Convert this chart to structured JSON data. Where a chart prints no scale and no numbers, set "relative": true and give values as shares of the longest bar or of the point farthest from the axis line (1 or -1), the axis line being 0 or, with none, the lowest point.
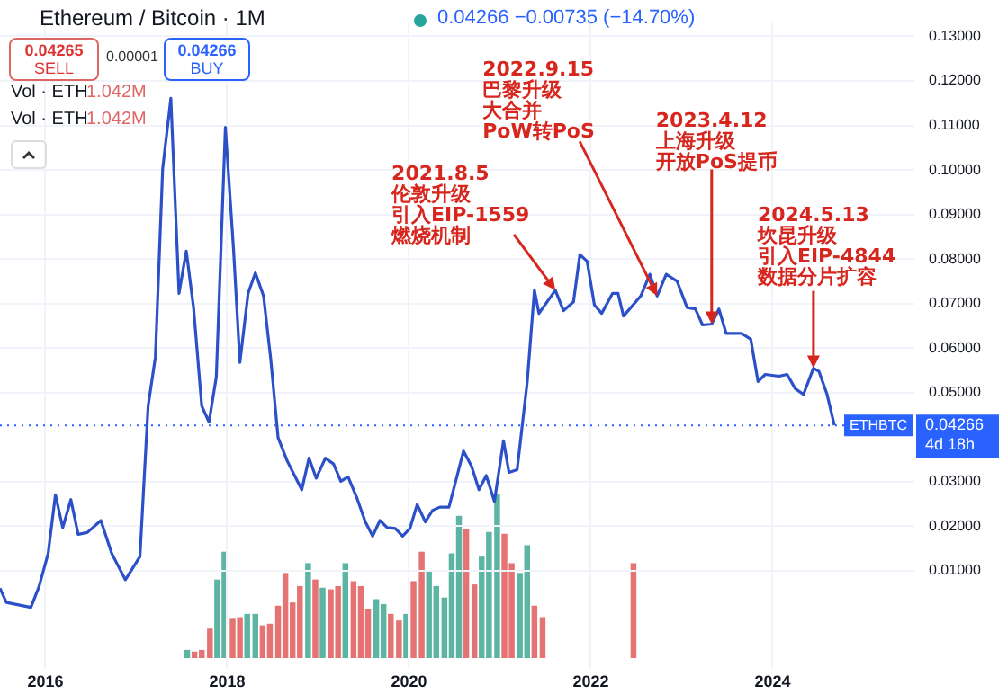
{
  "chart_data": [
    {
      "type": "line",
      "title": "Ethereum / Bitcoin · 1M",
      "subtitle": "0.04266 −0.00735 (−14.70%)",
      "x": [
        2015.5,
        2015.57,
        2015.84,
        2015.93,
        2016.03,
        2016.11,
        2016.19,
        2016.28,
        2016.36,
        2016.46,
        2016.61,
        2016.73,
        2016.88,
        2017.04,
        2017.13,
        2017.21,
        2017.29,
        2017.38,
        2017.47,
        2017.55,
        2017.63,
        2017.72,
        2017.8,
        2017.88,
        2017.98,
        2018.07,
        2018.14,
        2018.23,
        2018.31,
        2018.4,
        2018.48,
        2018.56,
        2018.66,
        2018.82,
        2018.9,
        2018.98,
        2019.08,
        2019.17,
        2019.25,
        2019.33,
        2019.43,
        2019.52,
        2019.6,
        2019.68,
        2019.76,
        2019.85,
        2019.93,
        2020.01,
        2020.09,
        2020.18,
        2020.26,
        2020.34,
        2020.44,
        2020.6,
        2020.69,
        2020.77,
        2020.85,
        2020.94,
        2021.04,
        2021.1,
        2021.19,
        2021.3,
        2021.38,
        2021.43,
        2021.61,
        2021.7,
        2021.81,
        2021.88,
        2021.96,
        2022.04,
        2022.12,
        2022.24,
        2022.3,
        2022.36,
        2022.55,
        2022.65,
        2022.73,
        2022.83,
        2022.95,
        2023.06,
        2023.15,
        2023.23,
        2023.33,
        2023.41,
        2023.49,
        2023.66,
        2023.76,
        2023.84,
        2023.92,
        2024.07,
        2024.16,
        2024.25,
        2024.34,
        2024.45,
        2024.51,
        2024.6,
        2024.68
      ],
      "series": [
        {
          "color": "#2b50c8",
          "values": [
            0.0061,
            0.0029,
            0.0018,
            0.0065,
            0.0139,
            0.0271,
            0.0197,
            0.026,
            0.0182,
            0.0186,
            0.0213,
            0.0139,
            0.008,
            0.0132,
            0.047,
            0.058,
            0.1003,
            0.1161,
            0.0723,
            0.0818,
            0.0691,
            0.047,
            0.0434,
            0.0535,
            0.1096,
            0.0821,
            0.0568,
            0.0723,
            0.0769,
            0.0717,
            0.0574,
            0.0399,
            0.0347,
            0.0282,
            0.0353,
            0.0308,
            0.0353,
            0.034,
            0.0301,
            0.0311,
            0.0262,
            0.021,
            0.0178,
            0.0213,
            0.0197,
            0.0195,
            0.0178,
            0.0195,
            0.0249,
            0.021,
            0.0236,
            0.0243,
            0.0243,
            0.0369,
            0.0334,
            0.0282,
            0.0314,
            0.0256,
            0.0392,
            0.0321,
            0.0327,
            0.0522,
            0.073,
            0.0678,
            0.073,
            0.0684,
            0.0704,
            0.081,
            0.0795,
            0.0697,
            0.0678,
            0.0723,
            0.0723,
            0.0672,
            0.0717,
            0.0766,
            0.0717,
            0.0766,
            0.075,
            0.0691,
            0.0688,
            0.0652,
            0.0654,
            0.0688,
            0.0633,
            0.0633,
            0.062,
            0.0525,
            0.0541,
            0.0537,
            0.0541,
            0.0509,
            0.0496,
            0.0555,
            0.0548,
            0.0496,
            0.04266
          ]
        }
      ],
      "xlim": [
        2015.5,
        2025.56
      ],
      "xticks": [
        2016,
        2018,
        2020,
        2022,
        2024
      ],
      "ylim": [
        -0.012,
        0.133
      ],
      "yticks": [
        {
          "value": 0.01,
          "label": "0.01000"
        },
        {
          "value": 0.02,
          "label": "0.02000"
        },
        {
          "value": 0.03,
          "label": "0.03000"
        },
        {
          "value": 0.05,
          "label": "0.05000"
        },
        {
          "value": 0.06,
          "label": "0.06000"
        },
        {
          "value": 0.07,
          "label": "0.07000"
        },
        {
          "value": 0.08,
          "label": "0.08000"
        },
        {
          "value": 0.09,
          "label": "0.09000"
        },
        {
          "value": 0.1,
          "label": "0.10000"
        },
        {
          "value": 0.11,
          "label": "0.11000"
        },
        {
          "value": 0.12,
          "label": "0.12000"
        },
        {
          "value": 0.13,
          "label": "0.13000"
        }
      ],
      "grid": true,
      "marker": "none",
      "line_style": "solid",
      "ref_lines": [
        {
          "axis": "y",
          "value": 0.04266,
          "label": "ETHBTC",
          "color": "#2962ff",
          "line_style": "dotted"
        }
      ],
      "annotations": [
        "0.04265",
        "SELL",
        "0.00001",
        "0.04266",
        "BUY",
        "Vol · ETH",
        "1.042M",
        "Vol · ETH",
        "1.042M",
        "4d 18h",
        {
          "text": "2021.8.5伦敦升级引入EIP-1559燃烧机制",
          "x": 2021.61,
          "y": 0.073
        },
        {
          "text": "2022.9.15巴黎升级大合并PoW转PoS",
          "x": 2022.73,
          "y": 0.0717
        },
        {
          "text": "2023.4.12上海升级开放PoS提币",
          "x": 2023.33,
          "y": 0.0654
        },
        {
          "text": "2024.5.13坎昆升级引入EIP-4844数据分片扩容",
          "x": 2024.45,
          "y": 0.0555
        }
      ]
    },
    {
      "type": "bar",
      "relative": true,
      "tick_labels": false,
      "xticks": [
        2016,
        2018,
        2020,
        2022,
        2024
      ],
      "x": [
        2017.56,
        2017.64,
        2017.72,
        2017.81,
        2017.89,
        2017.97,
        2018.06,
        2018.14,
        2018.22,
        2018.31,
        2018.39,
        2018.47,
        2018.56,
        2018.64,
        2018.72,
        2018.8,
        2018.89,
        2018.97,
        2019.05,
        2019.14,
        2019.22,
        2019.3,
        2019.39,
        2019.47,
        2019.55,
        2019.64,
        2019.72,
        2019.8,
        2019.89,
        2019.97,
        2020.05,
        2020.14,
        2020.22,
        2020.3,
        2020.39,
        2020.47,
        2020.55,
        2020.63,
        2020.72,
        2020.8,
        2020.88,
        2020.97,
        2021.05,
        2021.13,
        2021.22,
        2021.3,
        2021.38,
        2021.47,
        2022.47
      ],
      "values": [
        0.05,
        0.04,
        0.05,
        0.18,
        0.48,
        0.65,
        0.24,
        0.25,
        0.27,
        0.27,
        0.2,
        0.21,
        0.32,
        0.52,
        0.34,
        0.44,
        0.58,
        0.48,
        0.43,
        0.42,
        0.44,
        0.58,
        0.47,
        0.44,
        0.3,
        0.36,
        0.33,
        0.27,
        0.23,
        0.27,
        0.47,
        0.65,
        0.53,
        0.44,
        0.37,
        0.64,
        0.87,
        0.79,
        0.45,
        0.62,
        0.77,
        1,
        0.76,
        0.58,
        0.52,
        0.69,
        0.32,
        0.25,
        0.58
      ],
      "colors": [
        "#5bb5a2",
        "#e57373",
        "#e57373",
        "#e57373",
        "#5bb5a2",
        "#5bb5a2",
        "#e57373",
        "#e57373",
        "#5bb5a2",
        "#5bb5a2",
        "#e57373",
        "#e57373",
        "#e57373",
        "#e57373",
        "#e57373",
        "#e57373",
        "#5bb5a2",
        "#e57373",
        "#5bb5a2",
        "#e57373",
        "#e57373",
        "#5bb5a2",
        "#e57373",
        "#e57373",
        "#e57373",
        "#5bb5a2",
        "#5bb5a2",
        "#e57373",
        "#e57373",
        "#5bb5a2",
        "#e57373",
        "#e57373",
        "#5bb5a2",
        "#5bb5a2",
        "#5bb5a2",
        "#5bb5a2",
        "#5bb5a2",
        "#e57373",
        "#e57373",
        "#5bb5a2",
        "#5bb5a2",
        "#5bb5a2",
        "#e57373",
        "#e57373",
        "#5bb5a2",
        "#5bb5a2",
        "#e57373",
        "#e57373",
        "#e57373"
      ]
    }
  ]
}
